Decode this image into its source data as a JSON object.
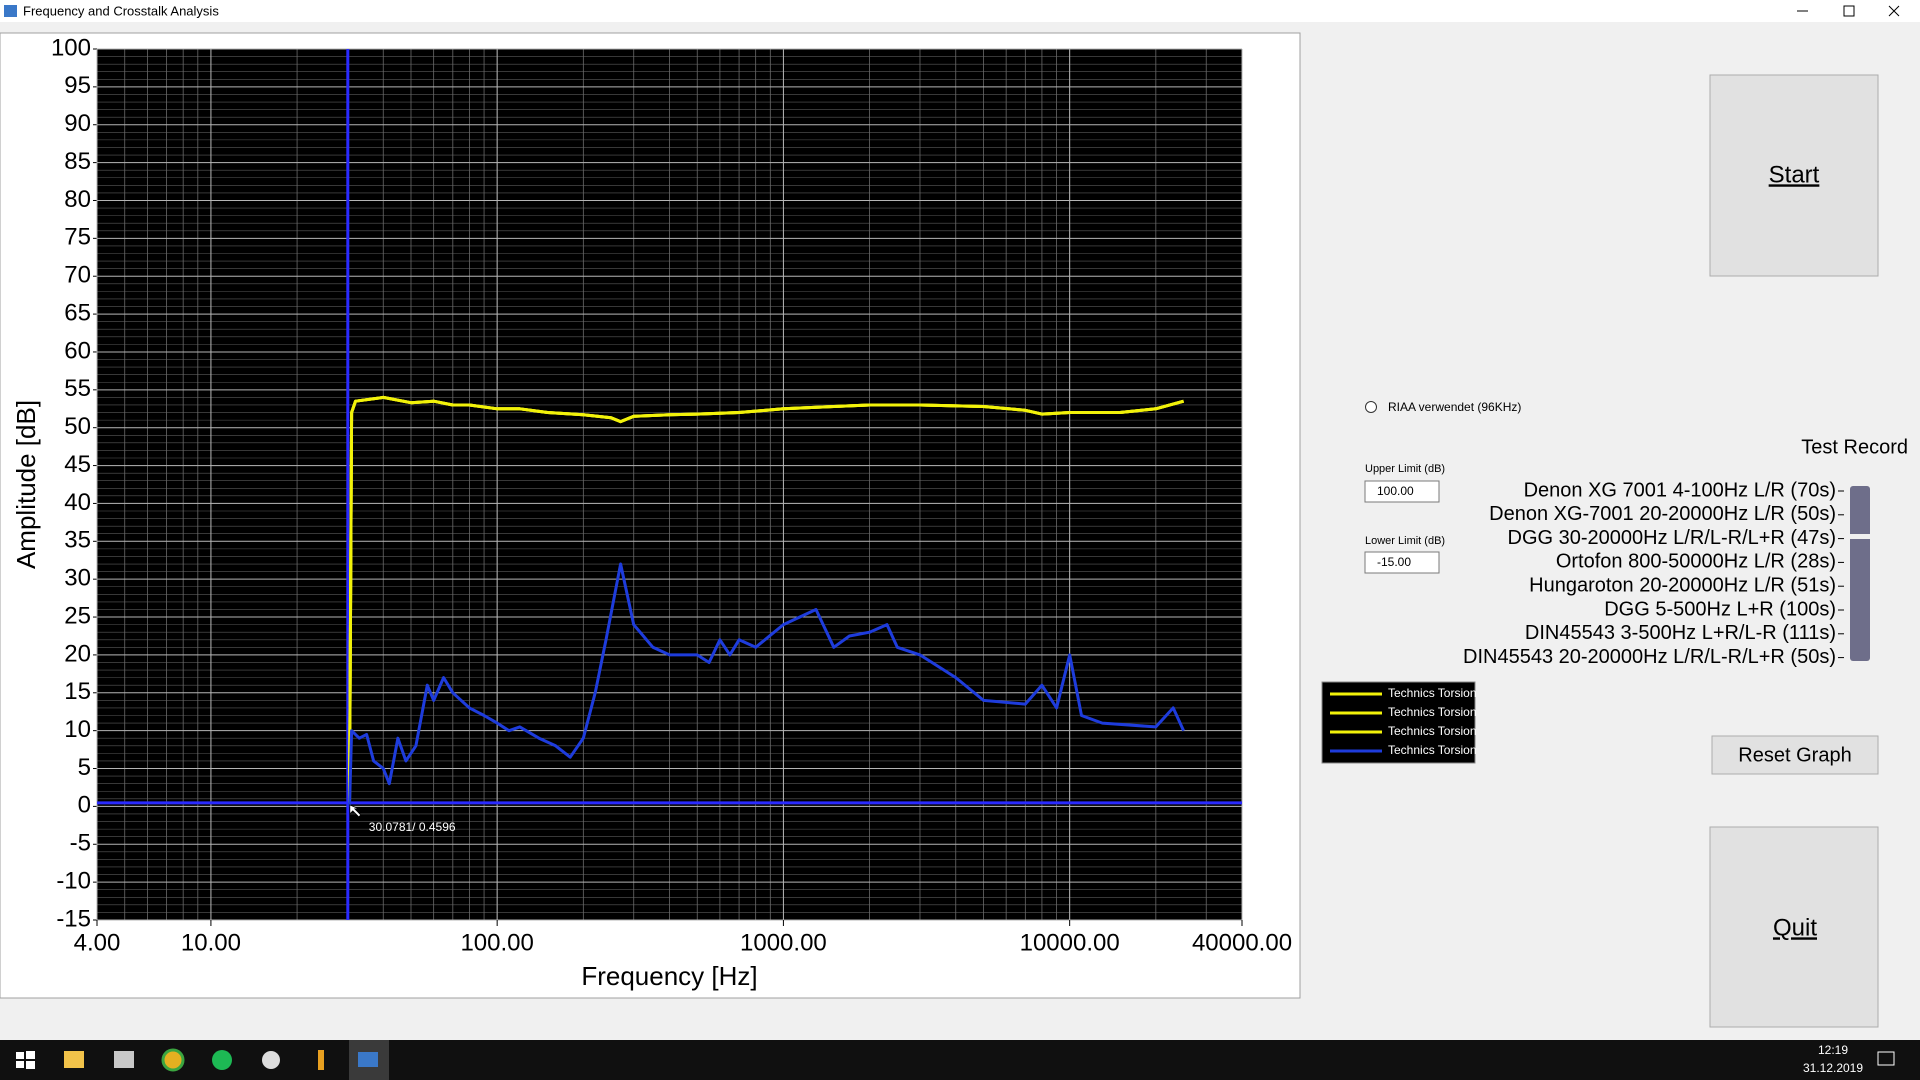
{
  "window": {
    "title": "Frequency and Crosstalk Analysis"
  },
  "chart_data": {
    "type": "line",
    "x_label": "Frequency [Hz]",
    "y_label": "Amplitude [dB]",
    "x_scale": "log",
    "grid": true,
    "xlim": [
      4,
      40000
    ],
    "xticks": [
      {
        "value": 4,
        "label": "4.00"
      },
      {
        "value": 10,
        "label": "10.00"
      },
      {
        "value": 100,
        "label": "100.00"
      },
      {
        "value": 1000,
        "label": "1000.00"
      },
      {
        "value": 10000,
        "label": "10000.00"
      },
      {
        "value": 40000,
        "label": "40000.00"
      }
    ],
    "ylim": [
      -15,
      100
    ],
    "yticks": [
      -15,
      -10,
      -5,
      0,
      5,
      10,
      15,
      20,
      25,
      30,
      35,
      40,
      45,
      50,
      55,
      60,
      65,
      70,
      75,
      80,
      85,
      90,
      95,
      100
    ],
    "cursor": {
      "x": 30.0781,
      "y": 0.4596,
      "label": "30.0781/ 0.4596",
      "color": "#2a2aff"
    },
    "series": [
      {
        "name": "Technics Torsion",
        "color": "#f2f20a",
        "x": [
          30.5,
          31,
          32,
          40,
          50,
          60,
          70,
          80,
          100,
          120,
          150,
          200,
          250,
          270,
          300,
          400,
          500,
          700,
          1000,
          1500,
          2000,
          3000,
          5000,
          7000,
          8000,
          10000,
          15000,
          20000,
          25000
        ],
        "values": [
          0.5,
          52,
          53.5,
          54,
          53.3,
          53.5,
          53,
          53,
          52.5,
          52.5,
          52,
          51.7,
          51.3,
          50.8,
          51.5,
          51.7,
          51.8,
          52,
          52.5,
          52.8,
          53,
          53,
          52.8,
          52.3,
          51.8,
          52,
          52,
          52.5,
          53.5
        ]
      },
      {
        "name": "Technics Torsion",
        "color": "#f2f20a",
        "x": [
          30.5,
          31,
          32,
          40,
          50,
          60,
          70,
          80,
          100,
          120,
          150,
          200,
          250,
          270,
          300,
          400,
          500,
          700,
          1000,
          1500,
          2000,
          3000,
          5000,
          7000,
          8000,
          10000,
          15000,
          20000,
          25000
        ],
        "values": [
          0.5,
          52,
          53.5,
          54,
          53.3,
          53.5,
          53,
          53,
          52.5,
          52.5,
          52,
          51.7,
          51.3,
          50.8,
          51.5,
          51.7,
          51.8,
          52,
          52.5,
          52.8,
          53,
          53,
          52.8,
          52.3,
          51.8,
          52,
          52,
          52.5,
          53.5
        ]
      },
      {
        "name": "Technics Torsion",
        "color": "#f2f20a",
        "x": [
          30.5,
          31,
          32,
          40,
          50,
          60,
          70,
          80,
          100,
          120,
          150,
          200,
          250,
          270,
          300,
          400,
          500,
          700,
          1000,
          1500,
          2000,
          3000,
          5000,
          7000,
          8000,
          10000,
          15000,
          20000,
          25000
        ],
        "values": [
          0.5,
          52,
          53.5,
          54,
          53.3,
          53.5,
          53,
          53,
          52.5,
          52.5,
          52,
          51.7,
          51.3,
          50.8,
          51.5,
          51.7,
          51.8,
          52,
          52.5,
          52.8,
          53,
          53,
          52.8,
          52.3,
          51.8,
          52,
          52,
          52.5,
          53.5
        ]
      },
      {
        "name": "Technics Torsion",
        "color": "#1e3cdc",
        "x": [
          30.5,
          31,
          33,
          35,
          37,
          40,
          42,
          45,
          48,
          52,
          57,
          60,
          65,
          70,
          80,
          90,
          100,
          110,
          120,
          140,
          160,
          180,
          200,
          220,
          240,
          270,
          300,
          350,
          400,
          500,
          550,
          600,
          650,
          700,
          800,
          1000,
          1300,
          1500,
          1700,
          2000,
          2300,
          2500,
          3000,
          4000,
          5000,
          7000,
          8000,
          9000,
          10000,
          11000,
          13000,
          20000,
          23000,
          25000
        ],
        "values": [
          0,
          10,
          9,
          9.5,
          6,
          5,
          3,
          9,
          6,
          8,
          16,
          14,
          17,
          15,
          13,
          12,
          11,
          10,
          10.5,
          9,
          8,
          6.5,
          9,
          15,
          22,
          32,
          24,
          21,
          20,
          20,
          19,
          22,
          20,
          22,
          21,
          24,
          26,
          21,
          22.5,
          23,
          24,
          21,
          20,
          17,
          14,
          13.5,
          16,
          13,
          20,
          12,
          11,
          10.5,
          13,
          10
        ]
      }
    ]
  },
  "controls": {
    "start": "Start",
    "quit": "Quit",
    "reset": "Reset Graph",
    "riaa": "RIAA verwendet (96KHz)",
    "test_record": "Test Record",
    "upper_label": "Upper Limit (dB)",
    "upper_value": "100.00",
    "lower_label": "Lower Limit (dB)",
    "lower_value": "-15.00",
    "records": [
      "Denon XG 7001 4-100Hz L/R (70s)",
      "Denon XG-7001 20-20000Hz L/R (50s)",
      "DGG 30-20000Hz L/R/L-R/L+R (47s)",
      "Ortofon 800-50000Hz L/R (28s)",
      "Hungaroton 20-20000Hz L/R (51s)",
      "DGG 5-500Hz L+R (100s)",
      "DIN45543 3-500Hz L+R/L-R (111s)",
      "DIN45543 20-20000Hz L/R/L-R/L+R (50s)"
    ]
  },
  "taskbar": {
    "time": "12:19",
    "date": "31.12.2019"
  }
}
